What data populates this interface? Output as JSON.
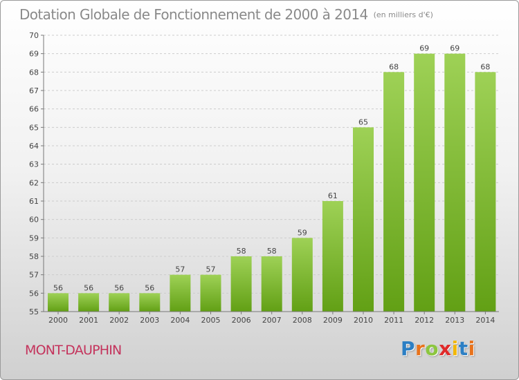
{
  "header": {
    "title": "Dotation Globale de Fonctionnement de 2000 à 2014",
    "unit": "(en milliers d'€)"
  },
  "footer": {
    "commune": "MONT-DAUPHIN",
    "logo_letters": [
      "P",
      "r",
      "o",
      "x",
      "i",
      "t",
      "i"
    ],
    "logo_colors": [
      "#2c7fc4",
      "#e8731c",
      "#8cc63f",
      "#e02a2a",
      "#f2b705",
      "#2c7fc4",
      "#e8731c"
    ]
  },
  "colors": {
    "bar_light": "#9ed156",
    "bar_dark": "#62a015",
    "grid": "#cccccc",
    "tick_text": "#444444"
  },
  "chart_data": {
    "type": "bar",
    "categories": [
      "2000",
      "2001",
      "2002",
      "2003",
      "2004",
      "2005",
      "2006",
      "2007",
      "2008",
      "2009",
      "2010",
      "2011",
      "2012",
      "2013",
      "2014"
    ],
    "values": [
      56,
      56,
      56,
      56,
      57,
      57,
      58,
      58,
      59,
      61,
      65,
      68,
      69,
      69,
      68
    ],
    "ylim": [
      55,
      70
    ],
    "yticks": [
      55,
      56,
      57,
      58,
      59,
      60,
      61,
      62,
      63,
      64,
      65,
      66,
      67,
      68,
      69,
      70
    ],
    "grid": true,
    "data_labels": true
  }
}
